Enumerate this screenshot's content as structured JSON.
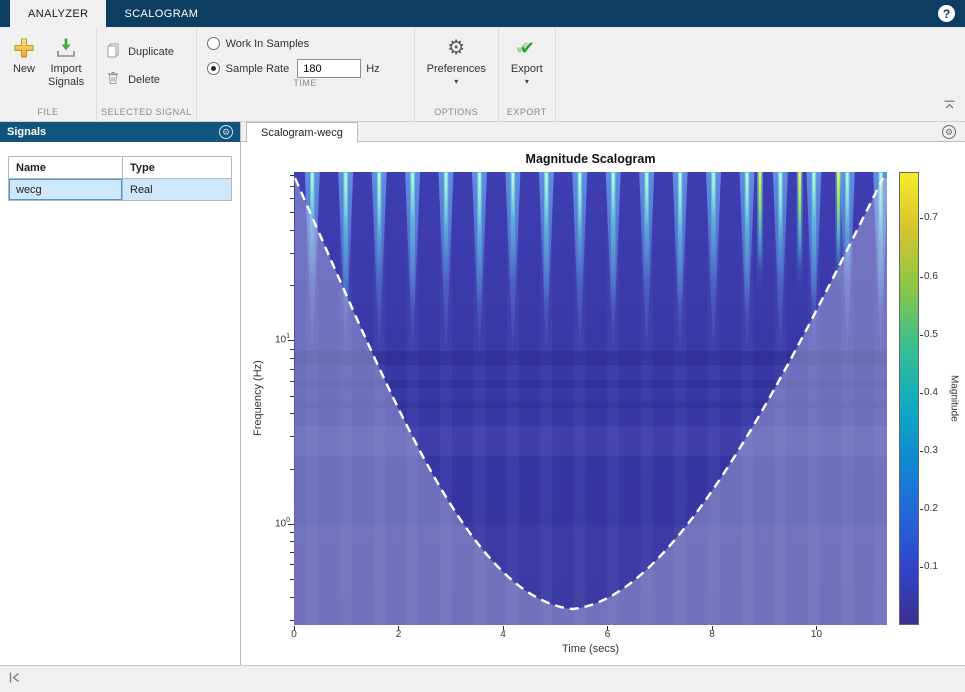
{
  "ribbon": {
    "tabs": [
      {
        "label": "ANALYZER",
        "active": true
      },
      {
        "label": "SCALOGRAM",
        "active": false
      }
    ],
    "help_glyph": "?"
  },
  "icons": {
    "gear": "⚙",
    "dropdown": "▾",
    "check": "✔"
  },
  "toolstrip": {
    "file": {
      "section_label": "FILE",
      "new_label": "New",
      "import_line1": "Import",
      "import_line2": "Signals"
    },
    "selected_signal": {
      "section_label": "SELECTED SIGNAL",
      "duplicate_label": "Duplicate",
      "delete_label": "Delete"
    },
    "time": {
      "section_label": "TIME",
      "work_in_samples_label": "Work In Samples",
      "sample_rate_label": "Sample Rate",
      "sample_rate_value": "180",
      "sample_rate_unit": "Hz",
      "selected_option": "Sample Rate"
    },
    "options": {
      "section_label": "OPTIONS",
      "preferences_label": "Preferences"
    },
    "export": {
      "section_label": "EXPORT",
      "export_label": "Export"
    }
  },
  "signals_panel": {
    "title": "Signals",
    "columns": [
      "Name",
      "Type"
    ],
    "rows": [
      {
        "name": "wecg",
        "type": "Real",
        "selected": true
      }
    ]
  },
  "document_area": {
    "tab_label": "Scalogram-wecg"
  },
  "chart_data": {
    "type": "heatmap",
    "title": "Magnitude Scalogram",
    "xlabel": "Time (secs)",
    "ylabel": "Frequency (Hz)",
    "x_ticks": [
      0,
      2,
      4,
      6,
      8,
      10
    ],
    "x_max": 11.35,
    "y_axis": {
      "scale": "log",
      "min_hz": 0.28,
      "max_hz": 83,
      "major_ticks": [
        {
          "hz": 10,
          "mantissa": "10",
          "exponent": "1"
        },
        {
          "hz": 1,
          "mantissa": "10",
          "exponent": "0"
        }
      ],
      "minor_ticks_hz": [
        0.3,
        0.4,
        0.5,
        0.6,
        0.7,
        0.8,
        0.9,
        2,
        3,
        4,
        5,
        6,
        7,
        8,
        9,
        20,
        30,
        40,
        50,
        60,
        70,
        80
      ]
    },
    "colorbar": {
      "label": "Magnitude",
      "vmin": 0,
      "vmax": 0.78,
      "ticks": [
        0.1,
        0.2,
        0.3,
        0.4,
        0.5,
        0.6,
        0.7
      ],
      "gradient_stops": [
        "#3b2f92",
        "#3145c8",
        "#2268d8",
        "#0e8cd0",
        "#12aebe",
        "#3fc08c",
        "#8cc743",
        "#d6c42f",
        "#f5ec27"
      ]
    },
    "palette": {
      "background_top": "#3e3eb2",
      "background_mid": "#3737a6",
      "background_bottom": "#35339d",
      "streak_glow": "#68a0ee",
      "streak_mid": "#62d8de",
      "streak_hot": "#c9f7d8",
      "bright_top": "#f4ef5a",
      "bright_mid": "#93e868",
      "coi_wash": "rgba(228,229,240,0.33)",
      "coi_line": "#ffffff"
    },
    "heartbeat_times_sec": [
      0.35,
      0.99,
      1.63,
      2.27,
      2.91,
      3.55,
      4.19,
      4.83,
      5.47,
      6.11,
      6.75,
      7.39,
      8.03,
      8.67,
      9.31,
      9.95,
      10.59,
      11.23
    ],
    "high_magnitude_times_sec": [
      8.92,
      9.68,
      10.42
    ],
    "cone_of_influence": {
      "style": "white-dashed",
      "bottom_center_time_sec": 5.45
    }
  }
}
